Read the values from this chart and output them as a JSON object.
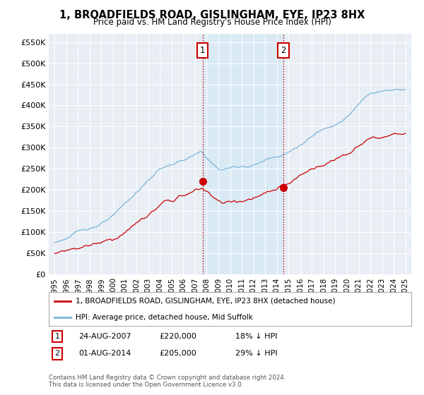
{
  "title": "1, BROADFIELDS ROAD, GISLINGHAM, EYE, IP23 8HX",
  "subtitle": "Price paid vs. HM Land Registry's House Price Index (HPI)",
  "ylabel_ticks": [
    "£0",
    "£50K",
    "£100K",
    "£150K",
    "£200K",
    "£250K",
    "£300K",
    "£350K",
    "£400K",
    "£450K",
    "£500K",
    "£550K"
  ],
  "ytick_vals": [
    0,
    50000,
    100000,
    150000,
    200000,
    250000,
    300000,
    350000,
    400000,
    450000,
    500000,
    550000
  ],
  "ylim": [
    0,
    570000
  ],
  "hpi_color": "#7ab5d8",
  "price_color": "#cc0000",
  "vline_color": "#cc0000",
  "shade_color": "#daeaf5",
  "sale1_year_f": 2007.65,
  "sale2_year_f": 2014.58,
  "sale1_price": 220000,
  "sale2_price": 205000,
  "legend_line1": "1, BROADFIELDS ROAD, GISLINGHAM, EYE, IP23 8HX (detached house)",
  "legend_line2": "HPI: Average price, detached house, Mid Suffolk",
  "footnote": "Contains HM Land Registry data © Crown copyright and database right 2024.\nThis data is licensed under the Open Government Licence v3.0.",
  "bg_color": "#ffffff",
  "plot_bg_color": "#e8eef4",
  "grid_color": "#ffffff"
}
